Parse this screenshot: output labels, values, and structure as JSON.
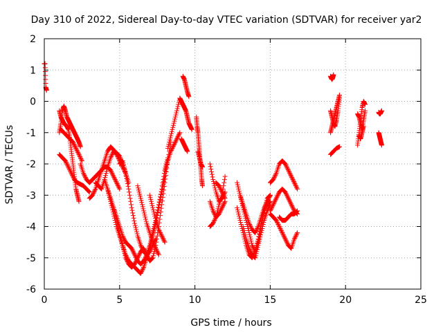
{
  "chart_data": {
    "type": "scatter",
    "title": "Day 310 of 2022, Sidereal Day-to-day VTEC variation (SDTVAR) for receiver yar2",
    "xlabel": "GPS time / hours",
    "ylabel": "SDTVAR / TECUs",
    "xlim": [
      0,
      25
    ],
    "ylim": [
      -6,
      2
    ],
    "xticks": [
      0,
      5,
      10,
      15,
      20,
      25
    ],
    "yticks": [
      -6,
      -5,
      -4,
      -3,
      -2,
      -1,
      0,
      1,
      2
    ],
    "grid": true,
    "marker": "+",
    "color": "#ff0000",
    "series": [
      {
        "name": "t0",
        "x": [
          0.0,
          0.05,
          0.1,
          0.15
        ],
        "y": [
          1.2,
          1.2,
          0.45,
          0.35
        ]
      },
      {
        "name": "a1",
        "x": [
          1.0,
          1.1,
          1.2,
          1.3,
          1.4,
          1.5,
          1.6,
          1.7,
          1.8,
          1.9,
          2.0,
          2.1,
          2.2,
          2.3
        ],
        "y": [
          -0.3,
          -0.5,
          -0.6,
          -0.7,
          -0.75,
          -0.8,
          -0.9,
          -1.2,
          -1.6,
          -2.0,
          -2.4,
          -2.8,
          -3.0,
          -3.2
        ]
      },
      {
        "name": "a2",
        "x": [
          1.0,
          1.1,
          1.2,
          1.3,
          1.4,
          1.5,
          1.6,
          1.7,
          1.8,
          1.9,
          2.0,
          2.1,
          2.2,
          2.3,
          2.4
        ],
        "y": [
          -1.0,
          -0.7,
          -0.3,
          -0.15,
          -0.3,
          -0.5,
          -0.6,
          -0.7,
          -0.8,
          -0.9,
          -1.0,
          -1.1,
          -1.2,
          -1.3,
          -1.45
        ]
      },
      {
        "name": "a3",
        "x": [
          1.0,
          1.2,
          1.4,
          1.6,
          1.8,
          2.0,
          2.2,
          2.4,
          2.6,
          2.8,
          3.0
        ],
        "y": [
          -1.7,
          -1.8,
          -1.9,
          -2.1,
          -2.3,
          -2.5,
          -2.6,
          -2.65,
          -2.7,
          -2.8,
          -2.9
        ]
      },
      {
        "name": "a4",
        "x": [
          1.1,
          1.3,
          1.5,
          1.7,
          1.9,
          2.1,
          2.3,
          2.5
        ],
        "y": [
          -0.9,
          -1.0,
          -1.1,
          -1.2,
          -1.3,
          -1.5,
          -1.7,
          -1.9
        ]
      },
      {
        "name": "b1",
        "x": [
          2.4,
          2.6,
          2.8,
          3.0,
          3.2,
          3.4,
          3.6,
          3.8,
          4.0,
          4.2,
          4.4,
          4.6,
          4.8,
          5.0
        ],
        "y": [
          -2.0,
          -2.3,
          -2.5,
          -2.6,
          -2.5,
          -2.4,
          -2.3,
          -2.2,
          -2.1,
          -2.1,
          -2.2,
          -2.4,
          -2.6,
          -2.8
        ]
      },
      {
        "name": "b2",
        "x": [
          3.0,
          3.2,
          3.4,
          3.6,
          3.8,
          4.0,
          4.2,
          4.4,
          4.6,
          4.8,
          5.0,
          5.2,
          5.4
        ],
        "y": [
          -3.1,
          -3.0,
          -2.8,
          -2.5,
          -2.2,
          -1.9,
          -1.6,
          -1.45,
          -1.55,
          -1.7,
          -1.9,
          -2.1,
          -2.3
        ]
      },
      {
        "name": "b3",
        "x": [
          3.4,
          3.6,
          3.8,
          4.0,
          4.2,
          4.4,
          4.6,
          4.8,
          5.0,
          5.2,
          5.4,
          5.6
        ],
        "y": [
          -2.6,
          -2.7,
          -2.8,
          -2.5,
          -2.1,
          -1.8,
          -1.6,
          -1.65,
          -1.75,
          -2.0,
          -2.3,
          -2.6
        ]
      },
      {
        "name": "c1",
        "x": [
          4.0,
          4.2,
          4.4,
          4.6,
          4.8,
          5.0,
          5.2,
          5.4,
          5.6,
          5.8,
          6.0,
          6.2,
          6.4,
          6.6,
          6.8,
          7.0,
          7.2,
          7.4,
          7.6,
          7.8,
          8.0
        ],
        "y": [
          -2.5,
          -2.8,
          -3.2,
          -3.6,
          -4.0,
          -4.3,
          -4.6,
          -4.9,
          -5.1,
          -5.2,
          -5.3,
          -5.4,
          -5.5,
          -5.3,
          -5.0,
          -4.7,
          -4.3,
          -3.9,
          -3.4,
          -2.9,
          -2.4
        ]
      },
      {
        "name": "c2",
        "x": [
          4.2,
          4.4,
          4.6,
          4.8,
          5.0,
          5.2,
          5.4,
          5.6,
          5.8,
          6.0,
          6.2,
          6.4,
          6.6,
          6.8,
          7.0,
          7.2,
          7.4,
          7.6,
          7.8,
          8.0,
          8.2
        ],
        "y": [
          -2.8,
          -3.1,
          -3.4,
          -3.7,
          -4.0,
          -4.3,
          -4.5,
          -4.6,
          -4.7,
          -4.9,
          -5.1,
          -5.2,
          -5.1,
          -4.9,
          -4.6,
          -4.2,
          -3.8,
          -3.3,
          -2.8,
          -2.2,
          -1.8
        ]
      },
      {
        "name": "c3",
        "x": [
          4.6,
          4.8,
          5.0,
          5.2,
          5.4,
          5.6,
          5.8,
          6.0,
          6.2,
          6.4,
          6.6,
          6.8,
          7.0,
          7.2,
          7.4,
          7.6,
          7.8,
          8.0,
          8.2,
          8.4
        ],
        "y": [
          -3.4,
          -3.8,
          -4.2,
          -4.6,
          -5.0,
          -5.2,
          -5.3,
          -5.2,
          -5.0,
          -4.8,
          -4.7,
          -4.9,
          -5.1,
          -5.0,
          -4.6,
          -4.0,
          -3.3,
          -2.6,
          -1.9,
          -1.3
        ]
      },
      {
        "name": "c4",
        "x": [
          5.0,
          5.2,
          5.4,
          5.6,
          5.8,
          6.0,
          6.2,
          6.4,
          6.6,
          6.8,
          7.0,
          7.2,
          7.4
        ],
        "y": [
          -2.0,
          -1.9,
          -2.3,
          -2.8,
          -3.4,
          -3.9,
          -4.3,
          -4.6,
          -4.8,
          -4.9,
          -4.8,
          -4.6,
          -4.4
        ]
      },
      {
        "name": "c5",
        "x": [
          6.2,
          6.4,
          6.6,
          6.8,
          7.0,
          7.2,
          7.4,
          7.6
        ],
        "y": [
          -2.7,
          -3.1,
          -3.5,
          -3.9,
          -4.2,
          -4.5,
          -4.7,
          -4.9
        ]
      },
      {
        "name": "c6",
        "x": [
          7.0,
          7.2,
          7.4,
          7.6,
          7.8,
          8.0
        ],
        "y": [
          -3.0,
          -3.4,
          -3.8,
          -4.1,
          -4.3,
          -4.5
        ]
      },
      {
        "name": "d1",
        "x": [
          8.0,
          8.2,
          8.4,
          8.6,
          8.8,
          9.0
        ],
        "y": [
          -2.3,
          -1.9,
          -1.6,
          -1.4,
          -1.2,
          -1.0
        ]
      },
      {
        "name": "d2",
        "x": [
          8.2,
          8.4,
          8.6,
          8.8,
          9.0
        ],
        "y": [
          -1.5,
          -1.1,
          -0.7,
          -0.3,
          0.1
        ]
      },
      {
        "name": "e1",
        "x": [
          9.0,
          9.1,
          9.2,
          9.3,
          9.4,
          9.5,
          9.6,
          9.7,
          9.8
        ],
        "y": [
          0.1,
          0.0,
          -0.1,
          -0.2,
          -0.3,
          -0.5,
          -0.7,
          -0.8,
          -0.9
        ]
      },
      {
        "name": "e2",
        "x": [
          9.2,
          9.3,
          9.4,
          9.5,
          9.6
        ],
        "y": [
          0.8,
          0.7,
          0.5,
          0.3,
          0.15
        ]
      },
      {
        "name": "e3",
        "x": [
          9.1,
          9.2,
          9.3,
          9.4,
          9.5
        ],
        "y": [
          -1.2,
          -1.3,
          -1.4,
          -1.5,
          -1.6
        ]
      },
      {
        "name": "f1",
        "x": [
          10.1,
          10.15,
          10.2,
          10.25,
          10.3,
          10.35,
          10.4,
          10.45,
          10.5
        ],
        "y": [
          -0.5,
          -0.8,
          -1.0,
          -1.3,
          -1.6,
          -1.9,
          -2.2,
          -2.5,
          -2.7
        ]
      },
      {
        "name": "f2",
        "x": [
          10.2,
          10.3,
          10.4,
          10.5
        ],
        "y": [
          -1.6,
          -1.8,
          -2.0,
          -2.1
        ]
      },
      {
        "name": "g1",
        "x": [
          11.0,
          11.2,
          11.4,
          11.6,
          11.8,
          12.0
        ],
        "y": [
          -2.0,
          -2.5,
          -2.9,
          -3.2,
          -3.1,
          -2.9
        ]
      },
      {
        "name": "g2",
        "x": [
          11.0,
          11.2,
          11.4,
          11.6,
          11.8,
          12.0
        ],
        "y": [
          -3.2,
          -3.5,
          -3.7,
          -3.6,
          -3.4,
          -3.2
        ]
      },
      {
        "name": "g3",
        "x": [
          11.0,
          11.2,
          11.4,
          11.6,
          11.8,
          12.0
        ],
        "y": [
          -4.0,
          -3.9,
          -3.7,
          -3.3,
          -3.0,
          -2.4
        ]
      },
      {
        "name": "g4",
        "x": [
          11.4,
          11.6,
          11.8,
          12.0
        ],
        "y": [
          -2.6,
          -2.7,
          -2.9,
          -3.1
        ]
      },
      {
        "name": "h1",
        "x": [
          12.8,
          13.0,
          13.2,
          13.4,
          13.6,
          13.8,
          14.0,
          14.2,
          14.4,
          14.6,
          14.8,
          15.0
        ],
        "y": [
          -2.6,
          -3.0,
          -3.4,
          -3.8,
          -4.2,
          -4.6,
          -4.8,
          -4.5,
          -4.0,
          -3.5,
          -3.1,
          -3.0
        ]
      },
      {
        "name": "h2",
        "x": [
          12.8,
          13.0,
          13.2,
          13.4,
          13.6,
          13.8,
          14.0,
          14.2,
          14.4,
          14.6,
          14.8,
          15.0
        ],
        "y": [
          -3.4,
          -3.8,
          -4.2,
          -4.6,
          -4.9,
          -5.0,
          -4.8,
          -4.4,
          -3.9,
          -3.5,
          -3.3,
          -3.2
        ]
      },
      {
        "name": "h3",
        "x": [
          13.0,
          13.2,
          13.4,
          13.6,
          13.8,
          14.0,
          14.2,
          14.4,
          14.6,
          14.8,
          15.0
        ],
        "y": [
          -3.0,
          -3.3,
          -3.6,
          -3.9,
          -4.1,
          -4.2,
          -4.0,
          -3.7,
          -3.4,
          -3.2,
          -3.0
        ]
      },
      {
        "name": "h4",
        "x": [
          13.2,
          13.4,
          13.6,
          13.8,
          14.0,
          14.2,
          14.4,
          14.6,
          14.8,
          15.0
        ],
        "y": [
          -4.0,
          -4.4,
          -4.7,
          -4.9,
          -5.0,
          -4.6,
          -4.2,
          -3.8,
          -3.5,
          -3.3
        ]
      },
      {
        "name": "i1",
        "x": [
          15.0,
          15.2,
          15.4,
          15.6,
          15.8,
          16.0,
          16.2,
          16.4,
          16.6,
          16.8
        ],
        "y": [
          -2.6,
          -2.5,
          -2.3,
          -2.0,
          -1.9,
          -2.0,
          -2.2,
          -2.4,
          -2.6,
          -2.8
        ]
      },
      {
        "name": "i2",
        "x": [
          15.0,
          15.2,
          15.4,
          15.6,
          15.8,
          16.0,
          16.2,
          16.4,
          16.6,
          16.8
        ],
        "y": [
          -3.5,
          -3.3,
          -3.1,
          -2.9,
          -2.8,
          -2.9,
          -3.1,
          -3.3,
          -3.5,
          -3.6
        ]
      },
      {
        "name": "i3",
        "x": [
          15.0,
          15.2,
          15.4,
          15.6,
          15.8,
          16.0,
          16.2,
          16.4,
          16.6,
          16.8
        ],
        "y": [
          -3.6,
          -3.7,
          -3.8,
          -4.0,
          -4.2,
          -4.4,
          -4.6,
          -4.7,
          -4.4,
          -4.2
        ]
      },
      {
        "name": "i4",
        "x": [
          15.6,
          15.8,
          16.0,
          16.2,
          16.4,
          16.6,
          16.8
        ],
        "y": [
          -3.7,
          -3.8,
          -3.8,
          -3.7,
          -3.6,
          -3.6,
          -3.5
        ]
      },
      {
        "name": "j1",
        "x": [
          19.0,
          19.05,
          19.1,
          19.15,
          19.2
        ],
        "y": [
          0.8,
          0.75,
          0.7,
          0.75,
          0.85
        ]
      },
      {
        "name": "j2",
        "x": [
          19.0,
          19.1,
          19.2,
          19.3,
          19.4,
          19.5,
          19.6
        ],
        "y": [
          -1.0,
          -0.8,
          -0.6,
          -0.4,
          -0.2,
          0.0,
          0.2
        ]
      },
      {
        "name": "j3",
        "x": [
          19.0,
          19.1,
          19.2,
          19.3,
          19.4,
          19.5,
          19.6
        ],
        "y": [
          -0.3,
          -0.5,
          -0.7,
          -0.8,
          -0.6,
          -0.3,
          0.1
        ]
      },
      {
        "name": "j4",
        "x": [
          19.0,
          19.2,
          19.4,
          19.6
        ],
        "y": [
          -1.7,
          -1.6,
          -1.5,
          -1.45
        ]
      },
      {
        "name": "k1",
        "x": [
          20.8,
          20.9,
          21.0,
          21.1,
          21.2,
          21.3
        ],
        "y": [
          -1.4,
          -1.0,
          -0.6,
          -0.2,
          0.0,
          -0.1
        ]
      },
      {
        "name": "k2",
        "x": [
          20.8,
          20.9,
          21.0,
          21.1,
          21.2,
          21.3
        ],
        "y": [
          -0.4,
          -0.5,
          -0.7,
          -0.9,
          -0.6,
          -0.3
        ]
      },
      {
        "name": "k3",
        "x": [
          20.9,
          21.0,
          21.1,
          21.2
        ],
        "y": [
          -1.1,
          -1.2,
          -1.0,
          -0.8
        ]
      },
      {
        "name": "l1",
        "x": [
          22.2,
          22.25,
          22.3,
          22.35,
          22.4
        ],
        "y": [
          -0.35,
          -0.4,
          -0.4,
          -0.35,
          -0.3
        ]
      },
      {
        "name": "l2",
        "x": [
          22.2,
          22.25,
          22.3,
          22.35,
          22.4
        ],
        "y": [
          -1.0,
          -1.1,
          -1.2,
          -1.3,
          -1.4
        ]
      }
    ]
  }
}
